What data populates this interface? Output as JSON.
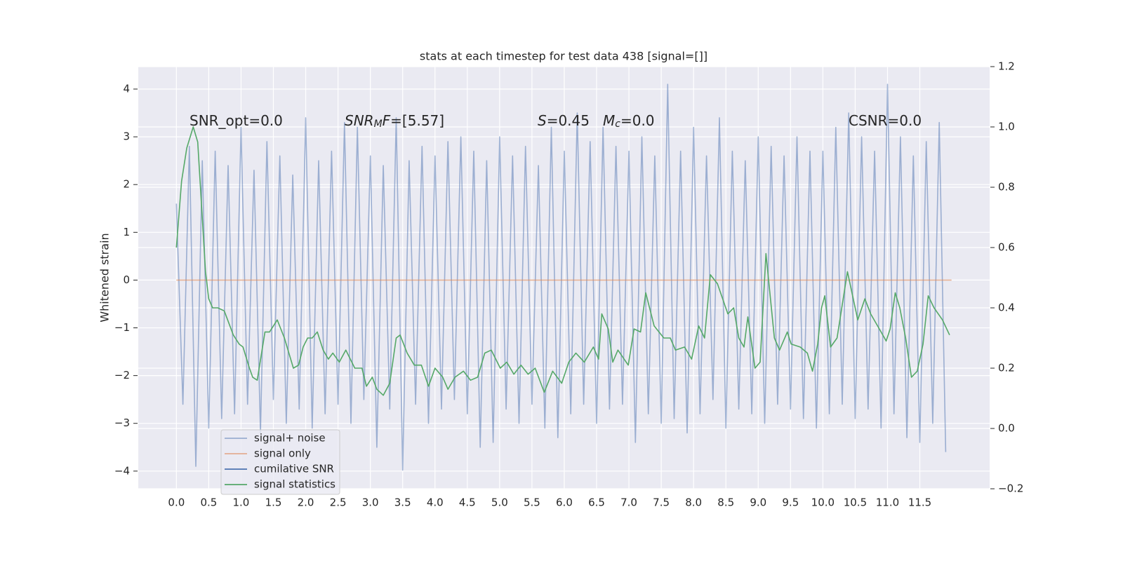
{
  "chart_data": {
    "type": "line",
    "title": "stats at each timestep for test data 438 [signal=[]]",
    "ylabel": "Whitened strain",
    "xlim": [
      -0.59,
      12.58
    ],
    "ylim": [
      -4.37,
      4.47
    ],
    "y2lim": [
      -0.2,
      1.2
    ],
    "grid": true,
    "xticks": [
      {
        "value": 0,
        "label": "0.0"
      },
      {
        "value": 0.5,
        "label": "0.5"
      },
      {
        "value": 1,
        "label": "1.0"
      },
      {
        "value": 1.5,
        "label": "1.5"
      },
      {
        "value": 2,
        "label": "2.0"
      },
      {
        "value": 2.5,
        "label": "2.5"
      },
      {
        "value": 3,
        "label": "3.0"
      },
      {
        "value": 3.5,
        "label": "3.5"
      },
      {
        "value": 4,
        "label": "4.0"
      },
      {
        "value": 4.5,
        "label": "4.5"
      },
      {
        "value": 5,
        "label": "5.0"
      },
      {
        "value": 5.5,
        "label": "5.5"
      },
      {
        "value": 6,
        "label": "6.0"
      },
      {
        "value": 6.5,
        "label": "6.5"
      },
      {
        "value": 7,
        "label": "7.0"
      },
      {
        "value": 7.5,
        "label": "7.5"
      },
      {
        "value": 8,
        "label": "8.0"
      },
      {
        "value": 8.5,
        "label": "8.5"
      },
      {
        "value": 9,
        "label": "9.0"
      },
      {
        "value": 9.5,
        "label": "9.5"
      },
      {
        "value": 10,
        "label": "10.0"
      },
      {
        "value": 10.5,
        "label": "10.5"
      },
      {
        "value": 11,
        "label": "11.0"
      },
      {
        "value": 11.5,
        "label": "11.5"
      }
    ],
    "yticks": [
      {
        "value": -4,
        "label": "−4"
      },
      {
        "value": -3,
        "label": "−3"
      },
      {
        "value": -2,
        "label": "−2"
      },
      {
        "value": -1,
        "label": "−1"
      },
      0,
      1,
      2,
      3,
      4
    ],
    "y2ticks": [
      {
        "value": -0.2,
        "label": "−0.2"
      },
      {
        "value": 0,
        "label": "0.0"
      },
      {
        "value": 0.2,
        "label": "0.2"
      },
      {
        "value": 0.4,
        "label": "0.4"
      },
      {
        "value": 0.6,
        "label": "0.6"
      },
      {
        "value": 0.8,
        "label": "0.8"
      },
      {
        "value": 1,
        "label": "1.0"
      },
      {
        "value": 1.2,
        "label": "1.2"
      }
    ],
    "annotations": [
      {
        "parts": [
          {
            "text": "SNR_opt=0.0"
          }
        ]
      },
      {
        "parts": [
          {
            "text": "SNR",
            "italic": true
          },
          {
            "text": "M",
            "italic": true,
            "sub": true
          },
          {
            "text": "F",
            "italic": true
          },
          {
            "text": "=[5.57]"
          }
        ]
      },
      {
        "parts": [
          {
            "text": "S",
            "italic": true
          },
          {
            "text": "=0.45"
          }
        ]
      },
      {
        "parts": [
          {
            "text": "M",
            "italic": true
          },
          {
            "text": "c",
            "italic": true,
            "sub": true
          },
          {
            "text": "=0.0"
          }
        ]
      },
      {
        "parts": [
          {
            "text": "CSNR=0.0"
          }
        ]
      }
    ],
    "series": [
      {
        "name": "signal+ noise",
        "color": "#4c72b0",
        "opacity": 0.5,
        "x": [
          0,
          0.1,
          0.2,
          0.3,
          0.4,
          0.5,
          0.6,
          0.7,
          0.8,
          0.9,
          1,
          1.1,
          1.2,
          1.3,
          1.4,
          1.5,
          1.6,
          1.7,
          1.8,
          1.9,
          2,
          2.1,
          2.2,
          2.3,
          2.4,
          2.5,
          2.6,
          2.7,
          2.8,
          2.9,
          3,
          3.1,
          3.2,
          3.3,
          3.4,
          3.5,
          3.6,
          3.7,
          3.8,
          3.9,
          4,
          4.1,
          4.2,
          4.3,
          4.4,
          4.5,
          4.6,
          4.7,
          4.8,
          4.9,
          5,
          5.1,
          5.2,
          5.3,
          5.4,
          5.5,
          5.6,
          5.7,
          5.8,
          5.9,
          6,
          6.1,
          6.2,
          6.3,
          6.4,
          6.5,
          6.6,
          6.7,
          6.8,
          6.9,
          7,
          7.1,
          7.2,
          7.3,
          7.4,
          7.5,
          7.6,
          7.7,
          7.8,
          7.9,
          8,
          8.1,
          8.2,
          8.3,
          8.4,
          8.5,
          8.6,
          8.7,
          8.8,
          8.9,
          9,
          9.1,
          9.2,
          9.3,
          9.4,
          9.5,
          9.6,
          9.7,
          9.8,
          9.9,
          10,
          10.1,
          10.2,
          10.3,
          10.4,
          10.5,
          10.6,
          10.7,
          10.8,
          10.9,
          11,
          11.1,
          11.2,
          11.3,
          11.4,
          11.5,
          11.6,
          11.7,
          11.8,
          11.9
        ],
        "values": [
          1.6,
          -2.6,
          2.8,
          -3.9,
          2.5,
          -3.1,
          2.7,
          -2.9,
          2.4,
          -2.8,
          3.2,
          -2.6,
          2.3,
          -3.2,
          2.9,
          -2.5,
          2.6,
          -3.0,
          2.2,
          -2.7,
          3.4,
          -3.1,
          2.5,
          -2.8,
          2.7,
          -2.6,
          3.3,
          -3.0,
          3.2,
          -2.5,
          2.6,
          -3.5,
          2.4,
          -2.7,
          3.4,
          -3.98,
          2.5,
          -2.6,
          2.8,
          -3.0,
          2.6,
          -2.7,
          2.9,
          -2.5,
          3.0,
          -2.8,
          2.7,
          -3.5,
          2.5,
          -3.4,
          3.0,
          -2.7,
          2.6,
          -3.0,
          2.8,
          -2.6,
          2.4,
          -3.1,
          3.2,
          -3.3,
          2.7,
          -2.8,
          3.5,
          -2.6,
          2.9,
          -3.0,
          3.2,
          -2.7,
          2.8,
          -2.6,
          2.7,
          -3.4,
          3.0,
          -2.8,
          2.6,
          -3.0,
          4.1,
          -2.9,
          2.7,
          -3.2,
          3.2,
          -2.8,
          2.6,
          -2.5,
          3.4,
          -3.1,
          2.7,
          -2.7,
          2.5,
          -2.8,
          3.0,
          -3.0,
          2.8,
          -2.6,
          2.6,
          -2.7,
          3.0,
          -2.9,
          2.7,
          -3.1,
          2.7,
          -2.8,
          3.2,
          -2.6,
          3.5,
          -2.9,
          3.0,
          -2.7,
          2.7,
          -3.1,
          4.1,
          -2.8,
          3.0,
          -3.3,
          2.6,
          -3.4,
          2.9,
          -3.0,
          3.3,
          -3.6
        ]
      },
      {
        "name": "signal only",
        "color": "#dd8452",
        "opacity": 0.6,
        "x": [
          0,
          11.99
        ],
        "values": [
          0,
          0
        ]
      },
      {
        "name": "cumilative SNR",
        "color": "#4c72b0",
        "opacity": 1,
        "x": [],
        "values": []
      },
      {
        "name": "signal statistics",
        "color": "#55a868",
        "opacity": 1,
        "axis": "y2",
        "x": [
          0,
          0.08,
          0.16,
          0.26,
          0.33,
          0.45,
          0.5,
          0.56,
          0.64,
          0.74,
          0.88,
          0.97,
          1.03,
          1.13,
          1.18,
          1.25,
          1.37,
          1.44,
          1.56,
          1.67,
          1.81,
          1.89,
          1.96,
          2.03,
          2.1,
          2.18,
          2.27,
          2.35,
          2.42,
          2.52,
          2.62,
          2.76,
          2.87,
          2.94,
          3.03,
          3.1,
          3.2,
          3.3,
          3.4,
          3.46,
          3.57,
          3.68,
          3.79,
          3.9,
          4.0,
          4.12,
          4.2,
          4.31,
          4.44,
          4.55,
          4.66,
          4.77,
          4.87,
          5.01,
          5.11,
          5.22,
          5.33,
          5.44,
          5.55,
          5.69,
          5.82,
          5.96,
          6.07,
          6.18,
          6.31,
          6.45,
          6.53,
          6.58,
          6.68,
          6.75,
          6.83,
          6.99,
          7.08,
          7.18,
          7.26,
          7.39,
          7.54,
          7.64,
          7.72,
          7.86,
          7.97,
          8.08,
          8.17,
          8.26,
          8.37,
          8.53,
          8.62,
          8.7,
          8.78,
          8.84,
          8.95,
          9.03,
          9.12,
          9.25,
          9.33,
          9.45,
          9.51,
          9.65,
          9.76,
          9.84,
          9.92,
          9.98,
          10.03,
          10.12,
          10.22,
          10.38,
          10.54,
          10.65,
          10.74,
          10.9,
          10.98,
          11.04,
          11.12,
          11.19,
          11.28,
          11.37,
          11.46,
          11.55,
          11.63,
          11.72,
          11.85,
          11.96
        ],
        "values": [
          0.6,
          0.82,
          0.93,
          1.0,
          0.95,
          0.52,
          0.43,
          0.4,
          0.4,
          0.39,
          0.31,
          0.28,
          0.27,
          0.2,
          0.17,
          0.16,
          0.32,
          0.32,
          0.36,
          0.3,
          0.2,
          0.21,
          0.27,
          0.3,
          0.3,
          0.32,
          0.26,
          0.23,
          0.25,
          0.22,
          0.26,
          0.2,
          0.2,
          0.14,
          0.17,
          0.13,
          0.11,
          0.15,
          0.3,
          0.31,
          0.25,
          0.21,
          0.21,
          0.14,
          0.2,
          0.17,
          0.13,
          0.17,
          0.19,
          0.16,
          0.17,
          0.25,
          0.26,
          0.2,
          0.22,
          0.18,
          0.21,
          0.18,
          0.2,
          0.12,
          0.19,
          0.15,
          0.22,
          0.25,
          0.22,
          0.27,
          0.23,
          0.38,
          0.33,
          0.22,
          0.26,
          0.21,
          0.33,
          0.32,
          0.45,
          0.34,
          0.3,
          0.3,
          0.26,
          0.27,
          0.23,
          0.34,
          0.3,
          0.51,
          0.48,
          0.38,
          0.4,
          0.3,
          0.27,
          0.37,
          0.2,
          0.22,
          0.58,
          0.3,
          0.26,
          0.32,
          0.28,
          0.27,
          0.25,
          0.19,
          0.28,
          0.4,
          0.44,
          0.27,
          0.3,
          0.52,
          0.36,
          0.43,
          0.38,
          0.32,
          0.29,
          0.33,
          0.45,
          0.4,
          0.3,
          0.17,
          0.19,
          0.28,
          0.44,
          0.4,
          0.36,
          0.31
        ]
      }
    ]
  }
}
